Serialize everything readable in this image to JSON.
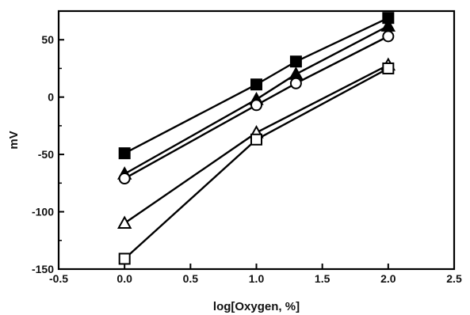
{
  "chart_data": {
    "type": "line",
    "title": "",
    "xlabel": "log[Oxygen, %]",
    "ylabel": "mV",
    "xlim": [
      -0.5,
      2.5
    ],
    "ylim": [
      -150,
      75
    ],
    "xticks": [
      -0.5,
      0.0,
      0.5,
      1.0,
      1.5,
      2.0,
      2.5
    ],
    "xtick_labels": [
      "-0.5",
      "0.0",
      "0.5",
      "1.0",
      "1.5",
      "2.0",
      "2.5"
    ],
    "yticks": [
      -150,
      -100,
      -50,
      0,
      50
    ],
    "ytick_labels": [
      "-150",
      "-100",
      "-50",
      "0",
      "50"
    ],
    "grid": false,
    "legend": "none",
    "series": [
      {
        "marker": "filled-square",
        "x": [
          0.0,
          1.0,
          1.3,
          2.0
        ],
        "y": [
          -49,
          11,
          31,
          69
        ]
      },
      {
        "marker": "filled-triangle",
        "x": [
          0.0,
          1.0,
          1.3,
          2.0
        ],
        "y": [
          -67,
          -2,
          20,
          62
        ]
      },
      {
        "marker": "open-circle",
        "x": [
          0.0,
          1.0,
          1.3,
          2.0
        ],
        "y": [
          -71,
          -7,
          12,
          53
        ]
      },
      {
        "marker": "open-triangle",
        "x": [
          0.0,
          1.0,
          2.0
        ],
        "y": [
          -110,
          -31,
          28
        ]
      },
      {
        "marker": "open-square",
        "x": [
          0.0,
          1.0,
          2.0
        ],
        "y": [
          -141,
          -37,
          25
        ]
      }
    ],
    "colors": {
      "line": "#000000",
      "axis": "#000000",
      "background": "#ffffff"
    }
  }
}
